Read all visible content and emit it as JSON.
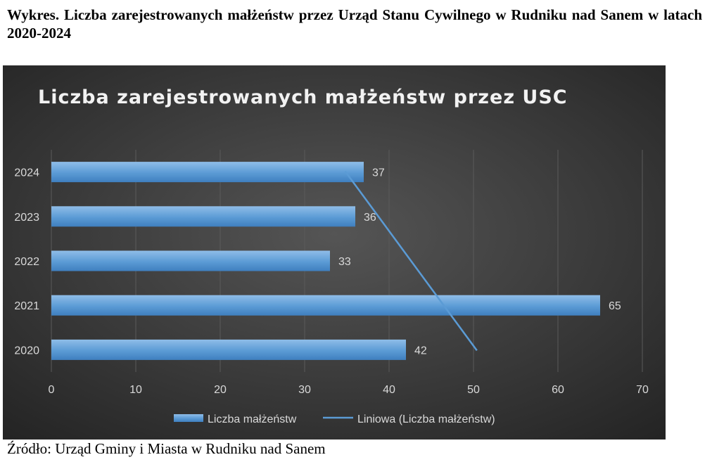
{
  "document": {
    "caption": "Wykres. Liczba zarejestrowanych małżeństw przez Urząd Stanu Cywilnego w Rudniku nad Sanem w latach 2020-2024",
    "source": "Źródło: Urząd Gminy i Miasta w Rudniku nad Sanem"
  },
  "chart_data": {
    "type": "bar",
    "orientation": "horizontal",
    "title": "Liczba zarejestrowanych małżeństw przez USC",
    "categories": [
      "2020",
      "2021",
      "2022",
      "2023",
      "2024"
    ],
    "series": [
      {
        "name": "Liczba małżeństw",
        "values": [
          42,
          65,
          33,
          36,
          37
        ]
      }
    ],
    "trendline": {
      "name": "Liniowa (Liczba małżeństw)",
      "type": "linear"
    },
    "xlim": [
      0,
      70
    ],
    "xticks": [
      "0",
      "10",
      "20",
      "30",
      "40",
      "50",
      "60",
      "70"
    ],
    "grid": true,
    "legend": "bottom",
    "colors": {
      "bar": "#5b9bd5",
      "trendline": "#5b9bd5",
      "background": "#2b2b2b"
    }
  }
}
